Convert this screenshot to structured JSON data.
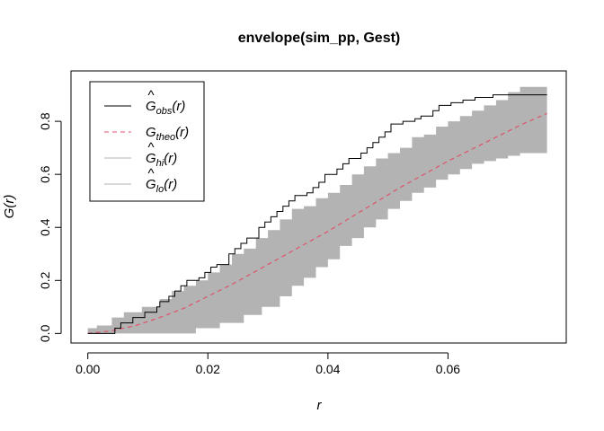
{
  "chart_data": {
    "type": "line",
    "title": "envelope(sim_pp, Gest)",
    "xlabel": "r",
    "ylabel": "G(r)",
    "xlim": [
      -0.0028,
      0.0797
    ],
    "ylim": [
      -0.036,
      0.99
    ],
    "x_ticks": [
      0.0,
      0.02,
      0.04,
      0.06
    ],
    "x_tick_labels": [
      "0.00",
      "0.02",
      "0.04",
      "0.06"
    ],
    "y_ticks": [
      0.0,
      0.2,
      0.4,
      0.6,
      0.8
    ],
    "y_tick_labels": [
      "0.0",
      "0.2",
      "0.4",
      "0.6",
      "0.8"
    ],
    "grid": false,
    "legend_position": "top-left",
    "legend": [
      {
        "hat": "^",
        "base": "G",
        "sub": "obs",
        "arg": "(r)",
        "color": "#000000",
        "dash": "solid"
      },
      {
        "hat": "",
        "base": "G",
        "sub": "theo",
        "arg": "(r)",
        "color": "#DF536B",
        "dash": "dashed"
      },
      {
        "hat": "^",
        "base": "G",
        "sub": "hi",
        "arg": "(r)",
        "color": "#B3B3B3",
        "dash": "solid"
      },
      {
        "hat": "^",
        "base": "G",
        "sub": "lo",
        "arg": "(r)",
        "color": "#B3B3B3",
        "dash": "solid"
      }
    ],
    "series": [
      {
        "name": "obs",
        "color": "#000000",
        "style": "step",
        "x": [
          0.0,
          0.0045,
          0.0055,
          0.0075,
          0.0095,
          0.0115,
          0.012,
          0.0135,
          0.0145,
          0.0155,
          0.0165,
          0.0185,
          0.0195,
          0.0205,
          0.0215,
          0.0235,
          0.0245,
          0.0255,
          0.0265,
          0.0285,
          0.0295,
          0.0305,
          0.0315,
          0.0325,
          0.0335,
          0.0345,
          0.0365,
          0.0375,
          0.0385,
          0.0395,
          0.0415,
          0.0425,
          0.0435,
          0.0455,
          0.0465,
          0.0475,
          0.0485,
          0.0495,
          0.0505,
          0.0525,
          0.0545,
          0.0555,
          0.0575,
          0.0585,
          0.0605,
          0.0625,
          0.0635,
          0.0645,
          0.0665,
          0.0675,
          0.0685,
          0.0705,
          0.0765
        ],
        "y": [
          0.0,
          0.02,
          0.04,
          0.06,
          0.08,
          0.1,
          0.12,
          0.14,
          0.16,
          0.18,
          0.2,
          0.21,
          0.23,
          0.25,
          0.26,
          0.3,
          0.32,
          0.34,
          0.36,
          0.4,
          0.42,
          0.44,
          0.46,
          0.48,
          0.5,
          0.52,
          0.53,
          0.55,
          0.57,
          0.6,
          0.62,
          0.64,
          0.66,
          0.68,
          0.7,
          0.72,
          0.74,
          0.76,
          0.79,
          0.8,
          0.81,
          0.82,
          0.84,
          0.86,
          0.87,
          0.88,
          0.88,
          0.89,
          0.89,
          0.9,
          0.9,
          0.9,
          0.9
        ]
      },
      {
        "name": "theo",
        "color": "#DF536B",
        "style": "dashed",
        "x": [
          0.0,
          0.004,
          0.008,
          0.012,
          0.016,
          0.02,
          0.024,
          0.028,
          0.032,
          0.036,
          0.04,
          0.044,
          0.048,
          0.052,
          0.056,
          0.06,
          0.064,
          0.068,
          0.072,
          0.0765
        ],
        "y": [
          0.0,
          0.01,
          0.03,
          0.06,
          0.095,
          0.14,
          0.185,
          0.235,
          0.285,
          0.335,
          0.385,
          0.44,
          0.495,
          0.55,
          0.6,
          0.65,
          0.695,
          0.74,
          0.785,
          0.83
        ]
      },
      {
        "name": "hi",
        "color": "#B3B3B3",
        "style": "step",
        "x": [
          0.0,
          0.0015,
          0.004,
          0.006,
          0.009,
          0.012,
          0.014,
          0.016,
          0.018,
          0.02,
          0.022,
          0.024,
          0.026,
          0.028,
          0.03,
          0.032,
          0.034,
          0.036,
          0.038,
          0.04,
          0.042,
          0.044,
          0.046,
          0.048,
          0.05,
          0.052,
          0.054,
          0.056,
          0.058,
          0.06,
          0.062,
          0.064,
          0.066,
          0.068,
          0.07,
          0.072,
          0.0765
        ],
        "y": [
          0.02,
          0.03,
          0.06,
          0.08,
          0.1,
          0.13,
          0.16,
          0.18,
          0.2,
          0.23,
          0.26,
          0.3,
          0.32,
          0.36,
          0.39,
          0.43,
          0.47,
          0.48,
          0.51,
          0.53,
          0.56,
          0.6,
          0.63,
          0.66,
          0.68,
          0.7,
          0.74,
          0.75,
          0.78,
          0.8,
          0.82,
          0.84,
          0.86,
          0.88,
          0.91,
          0.93,
          0.95
        ]
      },
      {
        "name": "lo",
        "color": "#B3B3B3",
        "style": "step",
        "x": [
          0.0,
          0.004,
          0.006,
          0.018,
          0.022,
          0.026,
          0.029,
          0.032,
          0.034,
          0.036,
          0.038,
          0.04,
          0.042,
          0.044,
          0.046,
          0.048,
          0.05,
          0.052,
          0.054,
          0.056,
          0.058,
          0.06,
          0.062,
          0.064,
          0.066,
          0.068,
          0.07,
          0.072,
          0.0765
        ],
        "y": [
          0.0,
          0.0,
          0.0,
          0.02,
          0.04,
          0.07,
          0.1,
          0.14,
          0.18,
          0.21,
          0.25,
          0.28,
          0.33,
          0.36,
          0.4,
          0.43,
          0.47,
          0.5,
          0.53,
          0.55,
          0.58,
          0.6,
          0.62,
          0.64,
          0.65,
          0.66,
          0.67,
          0.68,
          0.69
        ]
      }
    ]
  }
}
